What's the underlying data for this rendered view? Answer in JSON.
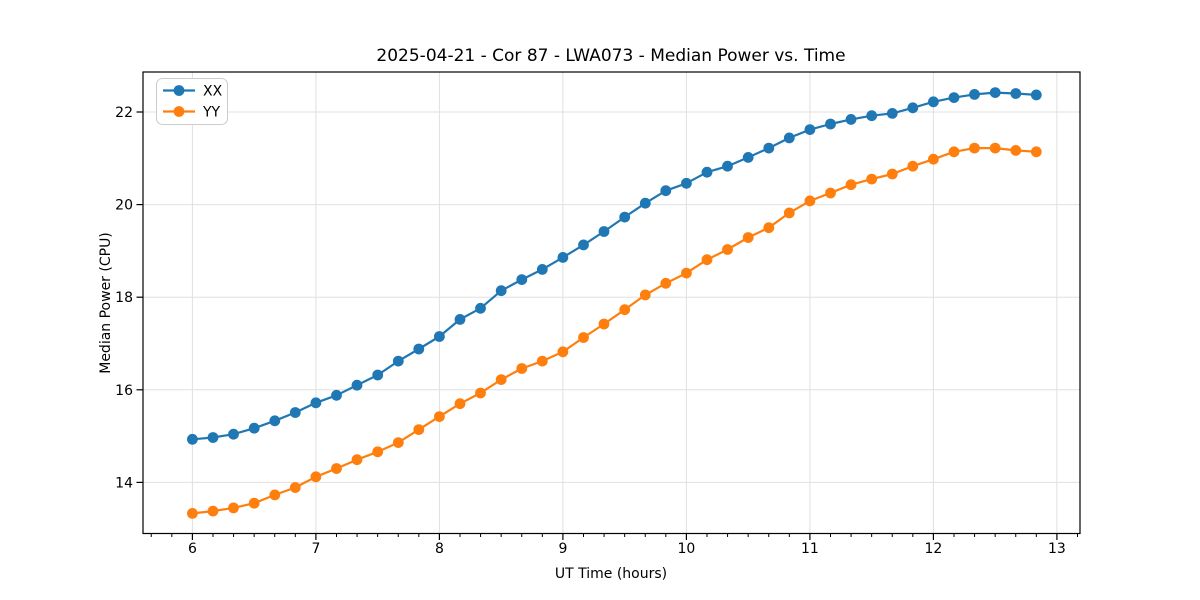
{
  "chart_data": {
    "type": "line",
    "title": "2025-04-21 - Cor 87 - LWA073 - Median Power vs. Time",
    "xlabel": "UT Time (hours)",
    "ylabel": "Median Power (CPU)",
    "xlim": [
      5.6,
      13.187
    ],
    "ylim": [
      12.896,
      22.864
    ],
    "xticks": [
      6,
      7,
      8,
      9,
      10,
      11,
      12,
      13
    ],
    "yticks": [
      14,
      16,
      18,
      20,
      22
    ],
    "x_minor_tick_step_hours": 0.1667,
    "grid": true,
    "legend_position": "upper left",
    "background_color": "#ffffff",
    "grid_color": "#e0e0e0",
    "spine_color": "#000000",
    "x": [
      6.0,
      6.167,
      6.333,
      6.5,
      6.667,
      6.833,
      7.0,
      7.167,
      7.333,
      7.5,
      7.667,
      7.833,
      8.0,
      8.167,
      8.333,
      8.5,
      8.667,
      8.833,
      9.0,
      9.167,
      9.333,
      9.5,
      9.667,
      9.833,
      10.0,
      10.167,
      10.333,
      10.5,
      10.667,
      10.833,
      11.0,
      11.167,
      11.333,
      11.5,
      11.667,
      11.833,
      12.0,
      12.167,
      12.333,
      12.5,
      12.667,
      12.833
    ],
    "series": [
      {
        "name": "XX",
        "color": "#1f77b4",
        "marker": "circle",
        "values": [
          14.93,
          14.97,
          15.04,
          15.17,
          15.33,
          15.51,
          15.72,
          15.88,
          16.1,
          16.32,
          16.62,
          16.88,
          17.15,
          17.52,
          17.76,
          18.14,
          18.38,
          18.6,
          18.86,
          19.13,
          19.42,
          19.73,
          20.03,
          20.3,
          20.46,
          20.7,
          20.83,
          21.02,
          21.22,
          21.44,
          21.62,
          21.74,
          21.84,
          21.92,
          21.97,
          22.09,
          22.22,
          22.31,
          22.38,
          22.42,
          22.4,
          22.37
        ]
      },
      {
        "name": "YY",
        "color": "#ff7f0e",
        "marker": "circle",
        "values": [
          13.33,
          13.38,
          13.45,
          13.55,
          13.73,
          13.89,
          14.12,
          14.3,
          14.49,
          14.66,
          14.86,
          15.14,
          15.42,
          15.7,
          15.93,
          16.22,
          16.46,
          16.62,
          16.82,
          17.13,
          17.42,
          17.73,
          18.05,
          18.3,
          18.52,
          18.81,
          19.03,
          19.29,
          19.5,
          19.82,
          20.08,
          20.25,
          20.43,
          20.55,
          20.66,
          20.83,
          20.98,
          21.14,
          21.22,
          21.22,
          21.17,
          21.14
        ]
      }
    ]
  }
}
